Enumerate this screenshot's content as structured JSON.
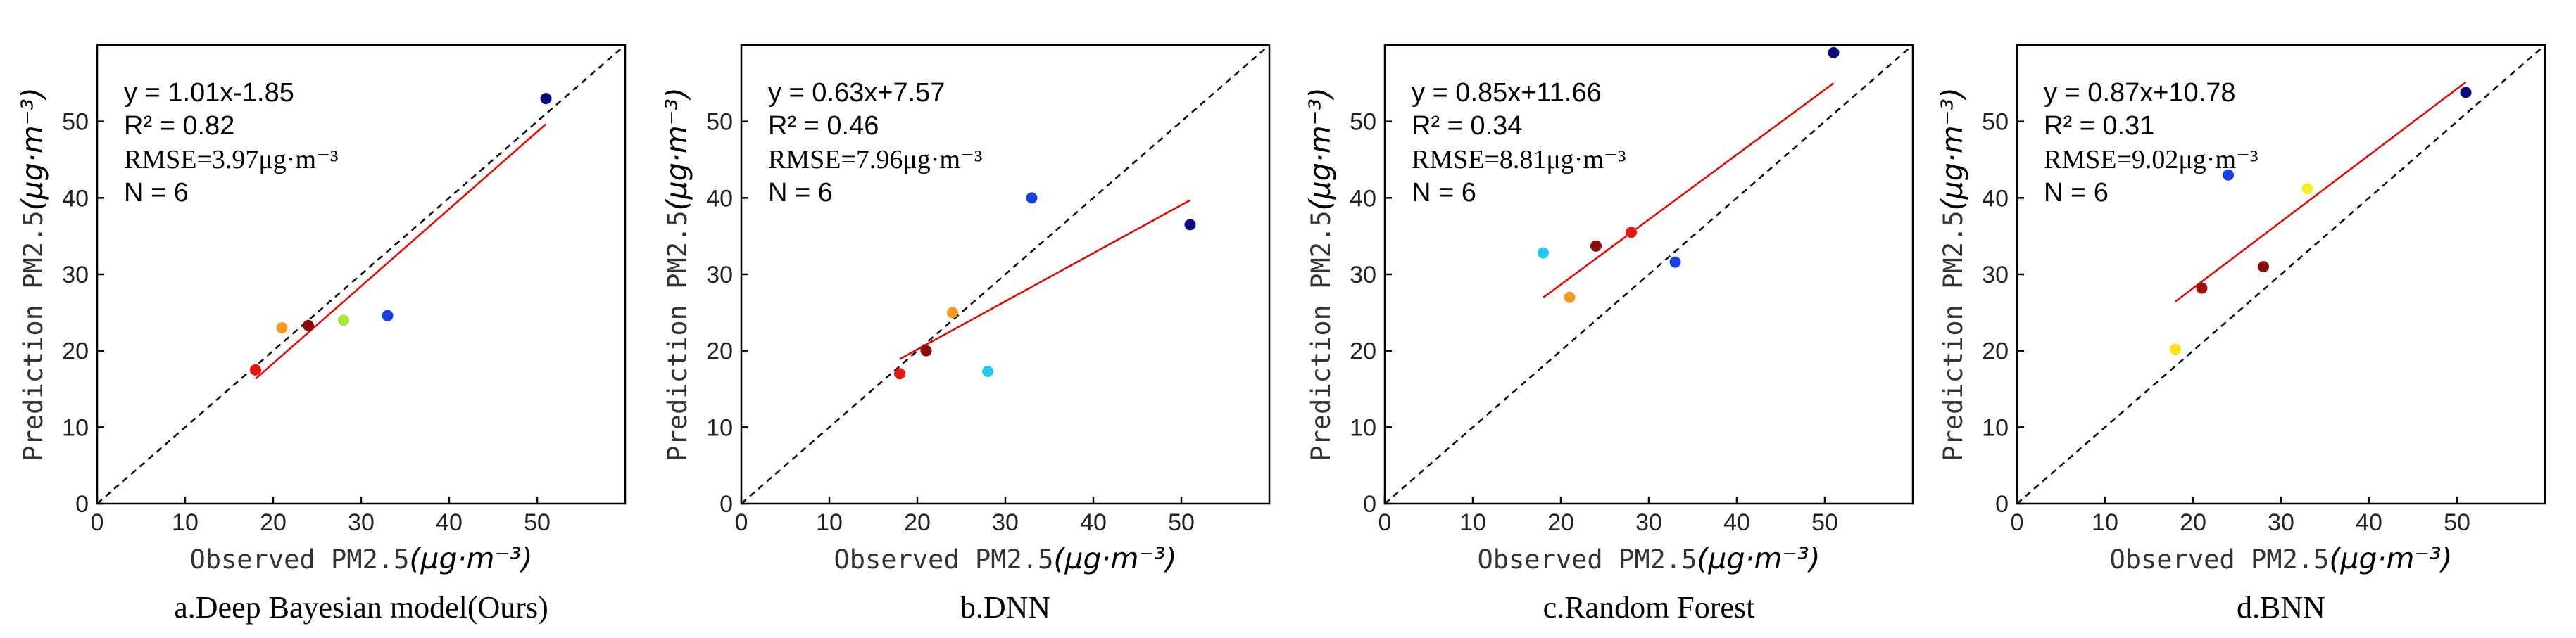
{
  "chart_data": [
    {
      "type": "scatter",
      "caption": "a.Deep Bayesian model(Ours)",
      "xlabel": "Observed PM2.5",
      "ylabel": "Prediction PM2.5",
      "unit": "(μg·m⁻³)",
      "xlim": [
        0,
        60
      ],
      "ylim": [
        0,
        60
      ],
      "xticks": [
        0,
        10,
        20,
        30,
        40,
        50
      ],
      "yticks": [
        0,
        10,
        20,
        30,
        40,
        50
      ],
      "equation": "y = 1.01x-1.85",
      "slope": 1.01,
      "intercept": -1.85,
      "r2": "R² = 0.82",
      "rmse": "RMSE=3.97μg·m⁻³",
      "n": "N = 6",
      "fit_range": [
        18,
        51
      ],
      "points": [
        {
          "x": 18,
          "y": 17.5,
          "color": "#e8160e"
        },
        {
          "x": 21,
          "y": 23,
          "color": "#f59a20"
        },
        {
          "x": 24,
          "y": 23.3,
          "color": "#8b0a0a"
        },
        {
          "x": 28,
          "y": 24,
          "color": "#a8e838"
        },
        {
          "x": 33,
          "y": 24.6,
          "color": "#1a3fe0"
        },
        {
          "x": 51,
          "y": 53,
          "color": "#0b0b7e"
        }
      ]
    },
    {
      "type": "scatter",
      "caption": "b.DNN",
      "xlabel": "Observed PM2.5",
      "ylabel": "Prediction PM2.5",
      "unit": "(μg·m⁻³)",
      "xlim": [
        0,
        60
      ],
      "ylim": [
        0,
        60
      ],
      "xticks": [
        0,
        10,
        20,
        30,
        40,
        50
      ],
      "yticks": [
        0,
        10,
        20,
        30,
        40,
        50
      ],
      "equation": "y = 0.63x+7.57",
      "slope": 0.63,
      "intercept": 7.57,
      "r2": "R² = 0.46",
      "rmse": "RMSE=7.96μg·m⁻³",
      "n": "N = 6",
      "fit_range": [
        18,
        51
      ],
      "points": [
        {
          "x": 18,
          "y": 17,
          "color": "#e8160e"
        },
        {
          "x": 21,
          "y": 20,
          "color": "#8b0a0a"
        },
        {
          "x": 24,
          "y": 25,
          "color": "#f59a20"
        },
        {
          "x": 28,
          "y": 17.3,
          "color": "#22c8ee"
        },
        {
          "x": 33,
          "y": 40,
          "color": "#1a3fe0"
        },
        {
          "x": 51,
          "y": 36.5,
          "color": "#0b0b7e"
        }
      ]
    },
    {
      "type": "scatter",
      "caption": "c.Random Forest",
      "xlabel": "Observed PM2.5",
      "ylabel": "Prediction PM2.5",
      "unit": "(μg·m⁻³)",
      "xlim": [
        0,
        60
      ],
      "ylim": [
        0,
        60
      ],
      "xticks": [
        0,
        10,
        20,
        30,
        40,
        50
      ],
      "yticks": [
        0,
        10,
        20,
        30,
        40,
        50
      ],
      "equation": "y = 0.85x+11.66",
      "slope": 0.85,
      "intercept": 11.66,
      "r2": "R² = 0.34",
      "rmse": "RMSE=8.81μg·m⁻³",
      "n": "N = 6",
      "fit_range": [
        18,
        51
      ],
      "points": [
        {
          "x": 18,
          "y": 32.8,
          "color": "#22c8ee"
        },
        {
          "x": 21,
          "y": 27,
          "color": "#f59a20"
        },
        {
          "x": 24,
          "y": 33.7,
          "color": "#8b0a0a"
        },
        {
          "x": 28,
          "y": 35.5,
          "color": "#e8160e"
        },
        {
          "x": 33,
          "y": 31.6,
          "color": "#1a3fe0"
        },
        {
          "x": 51,
          "y": 59,
          "color": "#0b0b7e"
        }
      ]
    },
    {
      "type": "scatter",
      "caption": "d.BNN",
      "xlabel": "Observed PM2.5",
      "ylabel": "Prediction PM2.5",
      "unit": "(μg·m⁻³)",
      "xlim": [
        0,
        60
      ],
      "ylim": [
        0,
        60
      ],
      "xticks": [
        0,
        10,
        20,
        30,
        40,
        50
      ],
      "yticks": [
        0,
        10,
        20,
        30,
        40,
        50
      ],
      "equation": "y = 0.87x+10.78",
      "slope": 0.87,
      "intercept": 10.78,
      "r2": "R² = 0.31",
      "rmse": "RMSE=9.02μg·m⁻³",
      "n": "N = 6",
      "fit_range": [
        18,
        51
      ],
      "points": [
        {
          "x": 18,
          "y": 20.2,
          "color": "#f4e414"
        },
        {
          "x": 21,
          "y": 28.2,
          "color": "#a0100c"
        },
        {
          "x": 24,
          "y": 43,
          "color": "#1a3fe0"
        },
        {
          "x": 28,
          "y": 31,
          "color": "#8b0a0a"
        },
        {
          "x": 33,
          "y": 41.2,
          "color": "#f2f028"
        },
        {
          "x": 51,
          "y": 53.8,
          "color": "#0b0b7e"
        }
      ]
    }
  ]
}
